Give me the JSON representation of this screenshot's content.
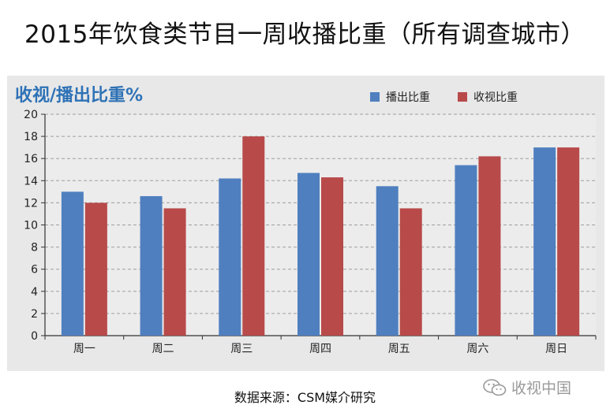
{
  "title": "2015年饮食类节目一周收播比重（所有调查城市）",
  "source": "数据来源：CSM媒介研究",
  "watermark": {
    "text": "收视中国",
    "icon": "wechat-icon"
  },
  "colors": {
    "series1": "#4f7fbf",
    "series2": "#b84a4a",
    "ylabel": "#2e72b6",
    "panel": "#e8e8e8"
  },
  "chart_data": {
    "type": "bar",
    "ylabel": "收视/播出比重%",
    "xlabel": "",
    "categories": [
      "周一",
      "周二",
      "周三",
      "周四",
      "周五",
      "周六",
      "周日"
    ],
    "series": [
      {
        "name": "播出比重",
        "values": [
          13.0,
          12.6,
          14.2,
          14.7,
          13.5,
          15.4,
          17.0
        ]
      },
      {
        "name": "收视比重",
        "values": [
          12.0,
          11.5,
          18.0,
          14.3,
          11.5,
          16.2,
          17.0
        ]
      }
    ],
    "ylim": [
      0,
      20
    ],
    "yticks": [
      0,
      2,
      4,
      6,
      8,
      10,
      12,
      14,
      16,
      18,
      20
    ],
    "grid": true,
    "legend": "top-right"
  }
}
